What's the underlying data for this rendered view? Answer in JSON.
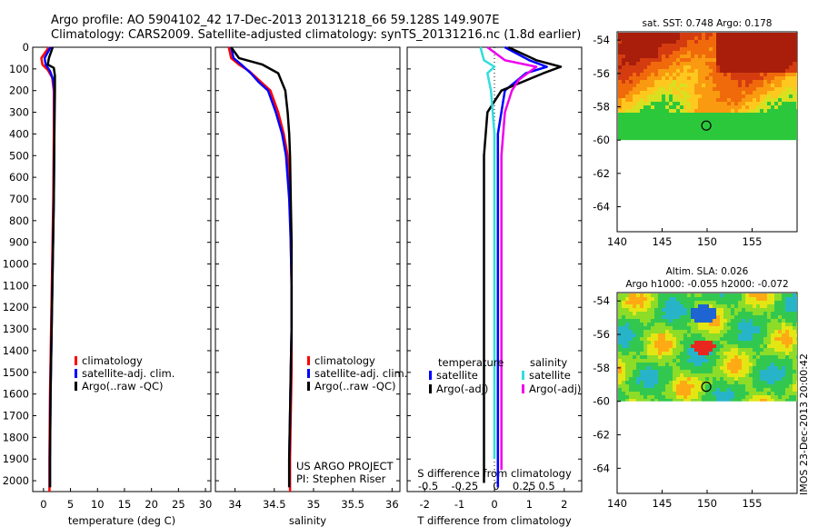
{
  "header": {
    "line1": "Argo profile: AO 5904102_42 17-Dec-2013 20131218_66 59.128S 149.907E",
    "line2": "Climatology: CARS2009. Satellite-adjusted climatology: synTS_20131216.nc (1.8d earlier)"
  },
  "footer": {
    "stamp": "IMOS 23-Dec-2013 20:00:42"
  },
  "colors": {
    "climatology": "#ff0000",
    "satellite": "#0000ff",
    "argo": "#000000",
    "sal_satellite": "#33dddd",
    "sal_argo": "#ee00ee"
  },
  "chart_data": [
    {
      "type": "line",
      "name": "temperature",
      "xlabel": "temperature (deg C)",
      "ylabel": "",
      "xlim": [
        -2,
        31
      ],
      "ylim": [
        2050,
        0
      ],
      "xticks": [
        0,
        5,
        10,
        15,
        20,
        25,
        30
      ],
      "yticks": [
        0,
        100,
        200,
        300,
        400,
        500,
        600,
        700,
        800,
        900,
        1000,
        1100,
        1200,
        1300,
        1400,
        1500,
        1600,
        1700,
        1800,
        1900,
        2000
      ],
      "legend": [
        "climatology",
        "satellite-adj. clim.",
        "Argo(..raw -QC)"
      ],
      "series": [
        {
          "name": "climatology",
          "color": "#ff0000",
          "x": [
            1.0,
            -0.4,
            -0.2,
            0.8,
            1.6,
            1.9,
            1.9,
            1.8,
            1.6,
            1.4,
            1.2,
            1.1,
            1.1
          ],
          "y": [
            0,
            50,
            80,
            105,
            140,
            200,
            400,
            700,
            1000,
            1300,
            1600,
            1900,
            2050
          ]
        },
        {
          "name": "satellite-adj. clim.",
          "color": "#0000ff",
          "x": [
            1.3,
            0.2,
            0.4,
            1.2,
            1.8,
            2.0,
            2.0,
            1.9,
            1.7,
            1.5,
            1.3,
            1.2,
            1.2
          ],
          "y": [
            0,
            50,
            80,
            110,
            150,
            200,
            400,
            700,
            1000,
            1300,
            1600,
            1900,
            2030
          ]
        },
        {
          "name": "Argo(..raw -QC)",
          "color": "#000000",
          "x": [
            1.7,
            1.0,
            0.8,
            1.9,
            2.1,
            2.1,
            2.0,
            1.9,
            1.7,
            1.5,
            1.3,
            1.2,
            1.2
          ],
          "y": [
            0,
            50,
            80,
            95,
            130,
            200,
            400,
            700,
            1000,
            1300,
            1600,
            1900,
            2030
          ]
        }
      ]
    },
    {
      "type": "line",
      "name": "salinity",
      "xlabel": "salinity",
      "ylabel": "",
      "xlim": [
        33.75,
        36.1
      ],
      "ylim": [
        2050,
        0
      ],
      "xticks": [
        34,
        34.5,
        35,
        35.5,
        36
      ],
      "xticklabels": [
        "34",
        "34.5",
        "35",
        "35.5",
        "36"
      ],
      "legend": [
        "climatology",
        "satellite-adj. clim.",
        "Argo(..raw -QC)"
      ],
      "annotation": [
        "US ARGO PROJECT",
        "PI: Stephen Riser"
      ],
      "series": [
        {
          "name": "climatology",
          "color": "#ff0000",
          "x": [
            33.92,
            33.95,
            34.05,
            34.18,
            34.3,
            34.45,
            34.55,
            34.62,
            34.67,
            34.7,
            34.71,
            34.72,
            34.72,
            34.72,
            34.71,
            34.7,
            34.7
          ],
          "y": [
            0,
            50,
            80,
            110,
            150,
            200,
            300,
            400,
            500,
            700,
            900,
            1100,
            1300,
            1500,
            1700,
            1900,
            2050
          ]
        },
        {
          "name": "satellite-adj. clim.",
          "color": "#0000ff",
          "x": [
            33.95,
            33.98,
            34.08,
            34.2,
            34.3,
            34.42,
            34.52,
            34.6,
            34.65,
            34.69,
            34.71,
            34.72,
            34.72,
            34.71,
            34.7,
            34.69,
            34.69
          ],
          "y": [
            0,
            50,
            80,
            120,
            160,
            200,
            300,
            400,
            500,
            700,
            900,
            1100,
            1300,
            1500,
            1700,
            1900,
            2030
          ]
        },
        {
          "name": "Argo(..raw -QC)",
          "color": "#000000",
          "x": [
            33.95,
            34.05,
            34.35,
            34.55,
            34.64,
            34.67,
            34.69,
            34.7,
            34.71,
            34.72,
            34.72,
            34.72,
            34.71,
            34.7,
            34.69,
            34.69
          ],
          "y": [
            0,
            50,
            80,
            120,
            200,
            300,
            400,
            500,
            700,
            900,
            1100,
            1300,
            1500,
            1700,
            1900,
            2030
          ]
        }
      ]
    },
    {
      "type": "line",
      "name": "difference from climatology",
      "xlabel": "T difference from climatology",
      "x2label": "S difference from climatology",
      "xlim": [
        -2.5,
        2.5
      ],
      "ylim": [
        2050,
        0
      ],
      "xticks": [
        -2,
        -1,
        0,
        1,
        2
      ],
      "x2ticks": [
        "-0.5",
        "-0.25",
        "0",
        "0.25",
        "0.5"
      ],
      "legend_headers": [
        "temperature",
        "salinity"
      ],
      "legend": [
        "satellite",
        "Argo(-adj)",
        "satellite",
        "Argo(-adj)"
      ],
      "series": [
        {
          "name": "temperature satellite",
          "color": "#0000ff",
          "x": [
            0.3,
            1.0,
            1.5,
            0.9,
            0.3,
            0.1,
            0.1,
            0.1,
            0.1,
            0.1,
            0.1,
            0.1
          ],
          "y": [
            0,
            60,
            90,
            120,
            200,
            400,
            700,
            1000,
            1300,
            1600,
            1900,
            2030
          ]
        },
        {
          "name": "temperature Argo(-adj)",
          "color": "#000000",
          "x": [
            0.4,
            1.2,
            1.9,
            1.4,
            0.2,
            -0.2,
            -0.3,
            -0.3,
            -0.3,
            -0.3,
            -0.3,
            -0.3
          ],
          "y": [
            0,
            60,
            90,
            120,
            200,
            300,
            500,
            800,
            1100,
            1400,
            1700,
            2010
          ]
        },
        {
          "name": "salinity satellite",
          "color": "#33dddd",
          "x": [
            -0.4,
            -0.3,
            0.0,
            -0.2,
            -0.1,
            0.0,
            0.0,
            0.0,
            0.0,
            0.0,
            0.0
          ],
          "y": [
            0,
            60,
            90,
            120,
            200,
            400,
            700,
            1000,
            1300,
            1600,
            1900
          ]
        },
        {
          "name": "salinity Argo(-adj)",
          "color": "#ee00ee",
          "x": [
            -0.2,
            0.3,
            1.2,
            0.7,
            0.5,
            0.3,
            0.2,
            0.2,
            0.2,
            0.2,
            0.2,
            0.2
          ],
          "y": [
            0,
            60,
            90,
            150,
            200,
            300,
            500,
            800,
            1100,
            1400,
            1700,
            1950
          ]
        }
      ]
    },
    {
      "type": "heatmap",
      "name": "satellite SST",
      "title": "sat. SST: 0.748 Argo: 0.178",
      "xlim": [
        140,
        160
      ],
      "ylim": [
        -65.5,
        -53.5
      ],
      "xticks": [
        140,
        145,
        150,
        155
      ],
      "yticks": [
        -54,
        -56,
        -58,
        -60,
        -62,
        -64
      ],
      "data_extent_lat": [
        -60,
        -53.5
      ],
      "marker": {
        "lon": 149.907,
        "lat": -59.128
      }
    },
    {
      "type": "heatmap",
      "name": "altimetry SLA",
      "title": [
        "Altim. SLA: 0.026",
        "Argo h1000: -0.055 h2000: -0.072"
      ],
      "xlim": [
        140,
        160
      ],
      "ylim": [
        -65.5,
        -53.5
      ],
      "xticks": [
        140,
        145,
        150,
        155
      ],
      "yticks": [
        -54,
        -56,
        -58,
        -60,
        -62,
        -64
      ],
      "data_extent_lat": [
        -60,
        -53.5
      ],
      "marker": {
        "lon": 149.907,
        "lat": -59.128
      }
    }
  ]
}
